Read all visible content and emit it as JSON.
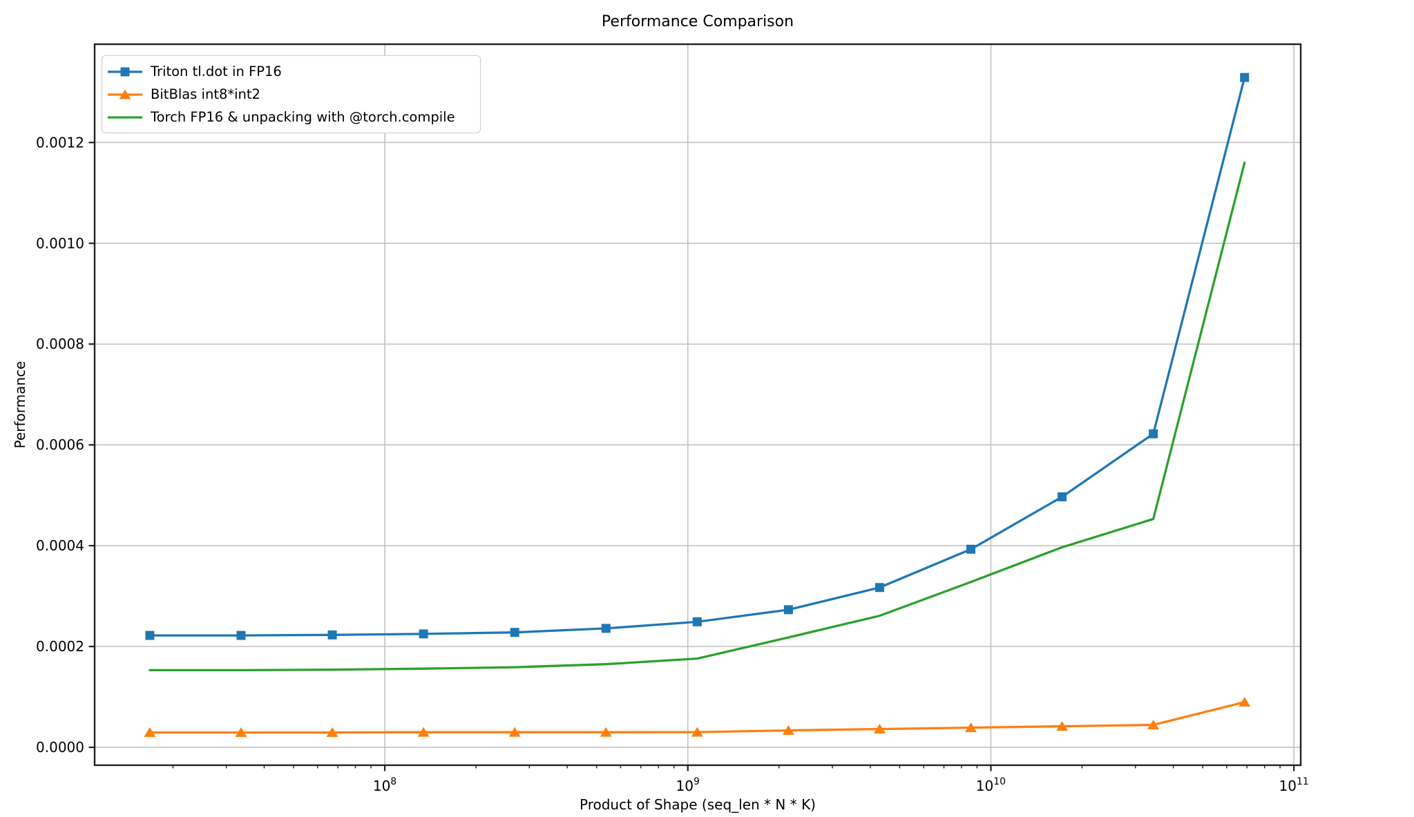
{
  "title": "Performance Comparison",
  "chart_data": {
    "type": "line",
    "title": "Performance Comparison",
    "xlabel": "Product of Shape (seq_len * N * K)",
    "ylabel": "Performance",
    "x_scale": "log",
    "grid": true,
    "legend_position": "upper left",
    "grid_color": "#c2c2c2",
    "spine_color": "#1f1f1f",
    "xlim": [
      11030000,
      105300000000
    ],
    "ylim": [
      -3.55e-05,
      0.001395
    ],
    "x": [
      16777216,
      33554432,
      67108864,
      134217728,
      268435456,
      536870912,
      1073741824,
      2147483648,
      4294967296,
      8589934592,
      17179869184,
      34359738368,
      68719476736
    ],
    "series": [
      {
        "name": "Triton tl.dot in FP16",
        "color": "#1f77b4",
        "marker": "square",
        "values": [
          0.000222,
          0.000222,
          0.000223,
          0.000225,
          0.000228,
          0.000236,
          0.000249,
          0.000273,
          0.000317,
          0.000393,
          0.000497,
          0.000622,
          0.001329
        ]
      },
      {
        "name": "BitBlas int8*int2",
        "color": "#ff7f0e",
        "marker": "triangle-up",
        "values": [
          2.95e-05,
          2.95e-05,
          2.95e-05,
          3e-05,
          3e-05,
          3e-05,
          3.01e-05,
          3.36e-05,
          3.63e-05,
          3.9e-05,
          4.18e-05,
          4.45e-05,
          8.97e-05
        ]
      },
      {
        "name": "Torch FP16 & unpacking with @torch.compile",
        "color": "#2ca02c",
        "marker": "none",
        "values": [
          0.000153,
          0.000153,
          0.000154,
          0.000156,
          0.000159,
          0.000165,
          0.000176,
          0.000218,
          0.000261,
          0.000328,
          0.000397,
          0.000453,
          0.00116
        ]
      }
    ],
    "y_ticks": [
      {
        "value": 0.0,
        "label": "0.0000"
      },
      {
        "value": 0.0002,
        "label": "0.0002"
      },
      {
        "value": 0.0004,
        "label": "0.0004"
      },
      {
        "value": 0.0006,
        "label": "0.0006"
      },
      {
        "value": 0.0008,
        "label": "0.0008"
      },
      {
        "value": 0.001,
        "label": "0.0010"
      },
      {
        "value": 0.0012,
        "label": "0.0012"
      }
    ],
    "x_ticks": [
      {
        "value": 100000000,
        "base": "10",
        "exp": "8"
      },
      {
        "value": 1000000000,
        "base": "10",
        "exp": "9"
      },
      {
        "value": 10000000000,
        "base": "10",
        "exp": "10"
      },
      {
        "value": 100000000000,
        "base": "10",
        "exp": "11"
      }
    ],
    "x_minor_subs": [
      2,
      3,
      4,
      5,
      6,
      7,
      8,
      9
    ]
  }
}
